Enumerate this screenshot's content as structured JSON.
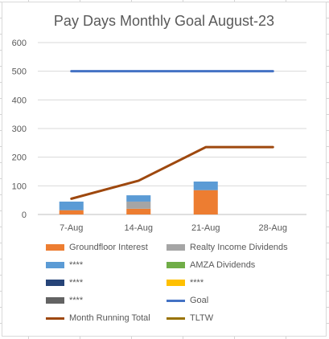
{
  "chart_data": {
    "type": "bar",
    "title": "Pay Days Monthly Goal August-23",
    "categories": [
      "7-Aug",
      "14-Aug",
      "21-Aug",
      "28-Aug"
    ],
    "ylim": [
      0,
      600
    ],
    "yticks": [
      0,
      100,
      200,
      300,
      400,
      500,
      600
    ],
    "grid": true,
    "legend_position": "bottom",
    "stacked_series": [
      {
        "name": "Groundfloor Interest",
        "color": "#ed7d31",
        "values": [
          15,
          20,
          85,
          0
        ]
      },
      {
        "name": "Realty Income Dividends",
        "color": "#a5a5a5",
        "values": [
          0,
          25,
          0,
          0
        ]
      },
      {
        "name": "****",
        "color": "#5b9bd5",
        "values": [
          30,
          22,
          30,
          0
        ]
      },
      {
        "name": "AMZA Dividends",
        "color": "#70ad47",
        "values": [
          0,
          0,
          0,
          0
        ]
      },
      {
        "name": "****",
        "color": "#264478",
        "values": [
          0,
          0,
          0,
          0
        ]
      },
      {
        "name": "****",
        "color": "#ffc000",
        "values": [
          0,
          0,
          0,
          0
        ]
      },
      {
        "name": "****",
        "color": "#636363",
        "values": [
          0,
          0,
          0,
          0
        ]
      }
    ],
    "line_series": [
      {
        "name": "Goal",
        "color": "#4472c4",
        "values": [
          500,
          500,
          500,
          500
        ]
      },
      {
        "name": "Month Running Total",
        "color": "#9e480e",
        "values": [
          55,
          118,
          235,
          235
        ]
      },
      {
        "name": "TLTW",
        "color": "#997300",
        "values": []
      }
    ]
  },
  "legend": [
    {
      "label": "Groundfloor Interest",
      "kind": "box",
      "color": "#ed7d31"
    },
    {
      "label": "Realty Income Dividends",
      "kind": "box",
      "color": "#a5a5a5"
    },
    {
      "label": "****",
      "kind": "box",
      "color": "#5b9bd5"
    },
    {
      "label": "AMZA Dividends",
      "kind": "box",
      "color": "#70ad47"
    },
    {
      "label": "****",
      "kind": "box",
      "color": "#264478"
    },
    {
      "label": "****",
      "kind": "box",
      "color": "#ffc000"
    },
    {
      "label": "****",
      "kind": "box",
      "color": "#636363"
    },
    {
      "label": "Goal",
      "kind": "line",
      "color": "#4472c4"
    },
    {
      "label": "Month Running Total",
      "kind": "line",
      "color": "#9e480e"
    },
    {
      "label": "TLTW",
      "kind": "line",
      "color": "#997300"
    }
  ]
}
